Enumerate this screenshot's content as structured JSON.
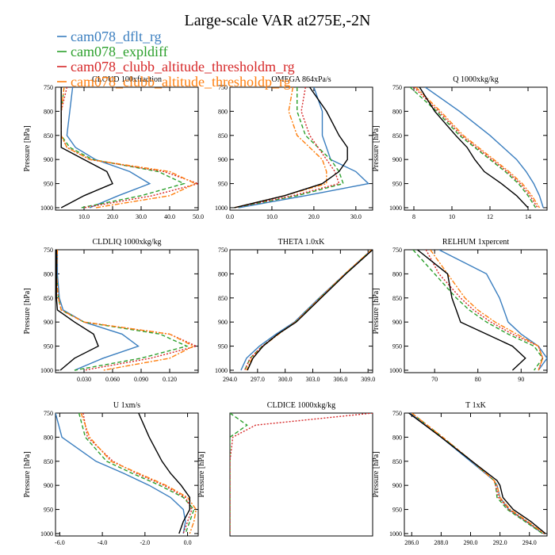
{
  "figure": {
    "title": "Large-scale VAR at275E,-2N"
  },
  "legend": [
    {
      "name": "cam078_dflt_rg",
      "color": "#3a7ebf"
    },
    {
      "name": "cam078_expldiff",
      "color": "#2ca02c"
    },
    {
      "name": "cam078_clubb_altitude_thresholdm_rg",
      "color": "#d62728"
    },
    {
      "name": "cam078_clubb_altitude_thresholdp_rg",
      "color": "#ff7f0e"
    }
  ],
  "chart_data": [
    {
      "type": "line",
      "title": "CLOUD 100xfraction",
      "ylabel": "Pressure [hPa]",
      "ylim": [
        1005,
        750
      ],
      "yticks": [
        750,
        800,
        850,
        900,
        950,
        1000
      ],
      "xlim": [
        0,
        50
      ],
      "xticks": [
        10,
        20,
        30,
        40,
        50
      ],
      "xticklabels": [
        "10.0",
        "20.0",
        "30.0",
        "40.0",
        "50.0"
      ],
      "y": [
        750,
        800,
        850,
        875,
        900,
        925,
        950,
        975,
        1000
      ],
      "series": [
        {
          "color": "#3a7ebf",
          "style": "solid",
          "values": [
            6,
            5,
            4,
            7,
            14,
            26,
            33,
            22,
            12
          ]
        },
        {
          "color": "#2ca02c",
          "style": "dashed",
          "values": [
            3,
            2,
            2,
            5,
            13,
            36,
            45,
            30,
            9
          ]
        },
        {
          "color": "#d62728",
          "style": "dotted",
          "values": [
            4,
            2,
            2,
            4,
            12,
            38,
            50,
            34,
            10
          ]
        },
        {
          "color": "#ff7f0e",
          "style": "dashdot",
          "values": [
            3,
            2,
            2,
            4,
            12,
            40,
            49,
            40,
            14
          ]
        },
        {
          "color": "#000000",
          "style": "solid",
          "values": [
            2,
            2,
            2,
            2,
            10,
            18,
            20,
            10,
            2
          ]
        }
      ]
    },
    {
      "type": "line",
      "title": "OMEGA 864xPa/s",
      "ylabel": "",
      "ylim": [
        1005,
        750
      ],
      "yticks": [
        750,
        800,
        850,
        900,
        950,
        1000
      ],
      "xlim": [
        0,
        34
      ],
      "xticks": [
        0,
        10,
        20,
        30
      ],
      "xticklabels": [
        "0.0",
        "10.0",
        "20.0",
        "30.0"
      ],
      "y": [
        750,
        800,
        850,
        875,
        900,
        925,
        950,
        975,
        1000
      ],
      "series": [
        {
          "color": "#3a7ebf",
          "style": "solid",
          "values": [
            20,
            22,
            22,
            23,
            24,
            30,
            33,
            18,
            2
          ]
        },
        {
          "color": "#2ca02c",
          "style": "dashed",
          "values": [
            16,
            16,
            18,
            21,
            24,
            26,
            27,
            16,
            1
          ]
        },
        {
          "color": "#d62728",
          "style": "dotted",
          "values": [
            18,
            17,
            19,
            21,
            23,
            25,
            26,
            15,
            1
          ]
        },
        {
          "color": "#ff7f0e",
          "style": "dashdot",
          "values": [
            15,
            14,
            16,
            19,
            22,
            23,
            23,
            13,
            1
          ]
        },
        {
          "color": "#000000",
          "style": "solid",
          "values": [
            19,
            23,
            26,
            28,
            28,
            26,
            22,
            13,
            1
          ]
        }
      ]
    },
    {
      "type": "line",
      "title": "Q 1000xkg/kg",
      "ylabel": "Pressure [hPa]",
      "ylim": [
        1005,
        750
      ],
      "yticks": [
        750,
        800,
        850,
        900,
        950,
        1000
      ],
      "xlim": [
        7.5,
        15
      ],
      "xticks": [
        8,
        10,
        12,
        14
      ],
      "xticklabels": [
        "8",
        "10",
        "12",
        "14"
      ],
      "y": [
        750,
        800,
        850,
        875,
        900,
        925,
        950,
        975,
        1000
      ],
      "series": [
        {
          "color": "#3a7ebf",
          "style": "solid",
          "values": [
            8.6,
            10.4,
            12.0,
            12.7,
            13.4,
            13.9,
            14.3,
            14.6,
            14.8
          ]
        },
        {
          "color": "#2ca02c",
          "style": "dashed",
          "values": [
            7.8,
            9.2,
            10.4,
            11.2,
            12.0,
            12.8,
            13.5,
            14.0,
            14.4
          ]
        },
        {
          "color": "#d62728",
          "style": "dotted",
          "values": [
            8.0,
            9.3,
            10.5,
            11.3,
            12.1,
            12.9,
            13.6,
            14.1,
            14.5
          ]
        },
        {
          "color": "#ff7f0e",
          "style": "dashdot",
          "values": [
            8.1,
            9.4,
            10.6,
            11.4,
            12.2,
            13.0,
            13.7,
            14.2,
            14.6
          ]
        },
        {
          "color": "#000000",
          "style": "solid",
          "values": [
            8.3,
            9.1,
            10.2,
            10.8,
            11.2,
            11.7,
            12.6,
            13.4,
            14.0
          ]
        }
      ]
    },
    {
      "type": "line",
      "title": "CLDLIQ 1000xkg/kg",
      "ylabel": "Pressure [hPa]",
      "ylim": [
        1005,
        750
      ],
      "yticks": [
        750,
        800,
        850,
        900,
        950,
        1000
      ],
      "xlim": [
        0,
        0.15
      ],
      "xticks": [
        0.03,
        0.06,
        0.09,
        0.12
      ],
      "xticklabels": [
        "0.030",
        "0.060",
        "0.090",
        "0.120"
      ],
      "y": [
        750,
        800,
        850,
        875,
        900,
        925,
        950,
        975,
        1000
      ],
      "series": [
        {
          "color": "#3a7ebf",
          "style": "solid",
          "values": [
            0.002,
            0.002,
            0.004,
            0.008,
            0.03,
            0.07,
            0.087,
            0.05,
            0.02
          ]
        },
        {
          "color": "#2ca02c",
          "style": "dashed",
          "values": [
            0.001,
            0.001,
            0.003,
            0.006,
            0.03,
            0.11,
            0.138,
            0.09,
            0.02
          ]
        },
        {
          "color": "#d62728",
          "style": "dotted",
          "values": [
            0.002,
            0.001,
            0.003,
            0.006,
            0.03,
            0.12,
            0.148,
            0.1,
            0.03
          ]
        },
        {
          "color": "#ff7f0e",
          "style": "dashdot",
          "values": [
            0.002,
            0.001,
            0.003,
            0.006,
            0.03,
            0.12,
            0.145,
            0.12,
            0.05
          ]
        },
        {
          "color": "#000000",
          "style": "solid",
          "values": [
            0.001,
            0.001,
            0.001,
            0.002,
            0.02,
            0.04,
            0.045,
            0.02,
            0.005
          ]
        }
      ]
    },
    {
      "type": "line",
      "title": "THETA 1.0xK",
      "ylabel": "",
      "ylim": [
        1005,
        750
      ],
      "yticks": [
        750,
        800,
        850,
        900,
        950,
        1000
      ],
      "xlim": [
        294,
        309.5
      ],
      "xticks": [
        294,
        297,
        300,
        303,
        306,
        309
      ],
      "xticklabels": [
        "294.0",
        "297.0",
        "300.0",
        "303.0",
        "306.0",
        "309.0"
      ],
      "y": [
        750,
        800,
        850,
        900,
        925,
        950,
        975,
        1000
      ],
      "series": [
        {
          "color": "#3a7ebf",
          "style": "solid",
          "values": [
            309.4,
            306.5,
            303.7,
            301.0,
            299.0,
            297.2,
            295.8,
            295.2
          ]
        },
        {
          "color": "#2ca02c",
          "style": "dashed",
          "values": [
            309.4,
            306.5,
            303.8,
            301.1,
            299.2,
            297.5,
            296.2,
            295.6
          ]
        },
        {
          "color": "#d62728",
          "style": "dotted",
          "values": [
            309.4,
            306.5,
            303.8,
            301.1,
            299.2,
            297.5,
            296.2,
            295.6
          ]
        },
        {
          "color": "#ff7f0e",
          "style": "dashdot",
          "values": [
            309.4,
            306.5,
            303.8,
            301.1,
            299.3,
            297.6,
            296.4,
            295.8
          ]
        },
        {
          "color": "#000000",
          "style": "solid",
          "values": [
            309.5,
            306.6,
            303.9,
            301.2,
            299.2,
            297.6,
            296.5,
            295.9
          ]
        }
      ]
    },
    {
      "type": "line",
      "title": "RELHUM 1xpercent",
      "ylabel": "Pressure [hPa]",
      "ylim": [
        1005,
        750
      ],
      "yticks": [
        750,
        800,
        850,
        900,
        950,
        1000
      ],
      "xlim": [
        63,
        96
      ],
      "xticks": [
        70,
        80,
        90
      ],
      "xticklabels": [
        "70",
        "80",
        "90"
      ],
      "y": [
        750,
        800,
        850,
        875,
        900,
        925,
        950,
        975,
        1000
      ],
      "series": [
        {
          "color": "#3a7ebf",
          "style": "solid",
          "values": [
            71,
            82,
            85,
            86,
            87,
            90,
            94,
            96,
            94
          ]
        },
        {
          "color": "#2ca02c",
          "style": "dashed",
          "values": [
            65,
            70,
            75,
            78,
            82,
            87,
            93,
            95,
            93
          ]
        },
        {
          "color": "#d62728",
          "style": "dotted",
          "values": [
            68,
            71,
            76,
            79,
            83,
            88,
            94,
            95,
            94
          ]
        },
        {
          "color": "#ff7f0e",
          "style": "dashdot",
          "values": [
            69,
            73,
            77,
            80,
            84,
            89,
            94,
            95,
            94
          ]
        },
        {
          "color": "#000000",
          "style": "solid",
          "values": [
            66,
            73,
            74,
            75,
            76,
            82,
            88,
            91,
            88
          ]
        }
      ]
    },
    {
      "type": "line",
      "title": "U 1xm/s",
      "ylabel": "Pressure [hPa]",
      "ylim": [
        1005,
        750
      ],
      "yticks": [
        750,
        800,
        850,
        900,
        950,
        1000
      ],
      "xlim": [
        -6.2,
        0.5
      ],
      "xticks": [
        -6,
        -4,
        -2,
        0
      ],
      "xticklabels": [
        "-6.0",
        "-4.0",
        "-2.0",
        "0.0"
      ],
      "y": [
        750,
        800,
        850,
        875,
        900,
        925,
        950,
        975,
        1000
      ],
      "series": [
        {
          "color": "#3a7ebf",
          "style": "solid",
          "values": [
            -6.2,
            -5.9,
            -4.3,
            -3.0,
            -1.8,
            -0.8,
            -0.2,
            -0.1,
            -0.2
          ]
        },
        {
          "color": "#2ca02c",
          "style": "dashed",
          "values": [
            -5.1,
            -4.8,
            -3.8,
            -2.6,
            -1.3,
            -0.2,
            0.3,
            0.1,
            -0.1
          ]
        },
        {
          "color": "#d62728",
          "style": "dotted",
          "values": [
            -4.9,
            -4.7,
            -3.5,
            -2.4,
            -1.1,
            -0.1,
            0.2,
            0.0,
            -0.2
          ]
        },
        {
          "color": "#ff7f0e",
          "style": "dashdot",
          "values": [
            -5.0,
            -4.6,
            -3.6,
            -2.3,
            -1.0,
            0.0,
            0.4,
            0.3,
            0.1
          ]
        },
        {
          "color": "#000000",
          "style": "solid",
          "values": [
            -2.3,
            -1.8,
            -1.2,
            -0.8,
            -0.3,
            0.1,
            0.1,
            -0.2,
            -0.4
          ]
        }
      ]
    },
    {
      "type": "line",
      "title": "CLDICE 1000xkg/kg",
      "ylabel": "Pressure [hPa]",
      "ylim": [
        1005,
        750
      ],
      "yticks": [],
      "xlim": [
        0,
        1
      ],
      "xticks": [],
      "xticklabels": [],
      "y": [
        750,
        775,
        800,
        850,
        900,
        950,
        1000
      ],
      "series": [
        {
          "color": "#2ca02c",
          "style": "dashed",
          "values": [
            0.0,
            0.12,
            0.0,
            0.0,
            0.0,
            0.0,
            0.0
          ]
        },
        {
          "color": "#d62728",
          "style": "dotted",
          "values": [
            1.0,
            0.18,
            0.02,
            0.0,
            0.0,
            0.0,
            0.0
          ]
        }
      ]
    },
    {
      "type": "line",
      "title": "T 1xK",
      "ylabel": "Pressure [hPa]",
      "ylim": [
        1005,
        750
      ],
      "yticks": [
        750,
        800,
        850,
        900,
        950,
        1000
      ],
      "xlim": [
        285.5,
        295.2
      ],
      "xticks": [
        286,
        288,
        290,
        292,
        294
      ],
      "xticklabels": [
        "286.0",
        "288.0",
        "290.0",
        "292.0",
        "294.0"
      ],
      "y": [
        750,
        800,
        850,
        890,
        900,
        925,
        950,
        975,
        1000
      ],
      "series": [
        {
          "color": "#3a7ebf",
          "style": "solid",
          "values": [
            285.9,
            288.0,
            290.0,
            291.6,
            291.8,
            292.0,
            292.6,
            293.8,
            294.9
          ]
        },
        {
          "color": "#2ca02c",
          "style": "dashed",
          "values": [
            286.0,
            288.1,
            290.1,
            291.6,
            291.7,
            291.8,
            292.5,
            293.7,
            294.9
          ]
        },
        {
          "color": "#d62728",
          "style": "dotted",
          "values": [
            286.0,
            288.1,
            290.1,
            291.6,
            291.7,
            291.9,
            292.6,
            293.8,
            295.0
          ]
        },
        {
          "color": "#ff7f0e",
          "style": "dashdot",
          "values": [
            286.0,
            288.1,
            290.1,
            291.6,
            291.8,
            292.0,
            292.7,
            293.9,
            295.0
          ]
        },
        {
          "color": "#000000",
          "style": "solid",
          "values": [
            285.8,
            288.0,
            290.1,
            291.8,
            292.0,
            292.2,
            292.9,
            294.1,
            295.1
          ]
        }
      ]
    }
  ]
}
